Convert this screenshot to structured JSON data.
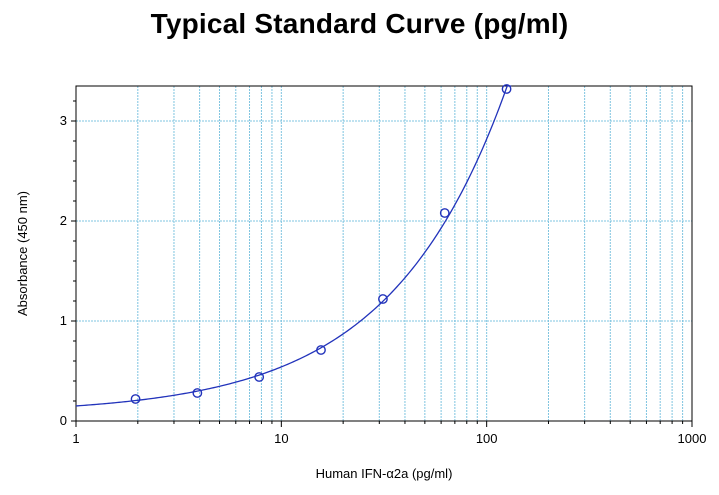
{
  "chart_data": {
    "type": "scatter",
    "title": "Typical Standard Curve (pg/ml)",
    "xlabel": "Human IFN-α2a (pg/ml)",
    "ylabel": "Absorbance (450 nm)",
    "xscale": "log",
    "xlim": [
      1,
      1000
    ],
    "ylim": [
      0,
      3.35
    ],
    "x_ticks": [
      "1",
      "10",
      "100",
      "1000"
    ],
    "y_ticks": [
      "0",
      "1",
      "2",
      "3"
    ],
    "grid": true,
    "legend": "none",
    "series": [
      {
        "points": [
          {
            "x": 1.95,
            "y": 0.22
          },
          {
            "x": 3.9,
            "y": 0.28
          },
          {
            "x": 7.8,
            "y": 0.44
          },
          {
            "x": 15.6,
            "y": 0.71
          },
          {
            "x": 31.25,
            "y": 1.22
          },
          {
            "x": 62.5,
            "y": 2.08
          },
          {
            "x": 125,
            "y": 3.32
          }
        ],
        "fit": "smooth-curve"
      }
    ],
    "colors": {
      "series": "#2233bb",
      "grid": "#7fc4e0",
      "axis": "#000000"
    }
  }
}
